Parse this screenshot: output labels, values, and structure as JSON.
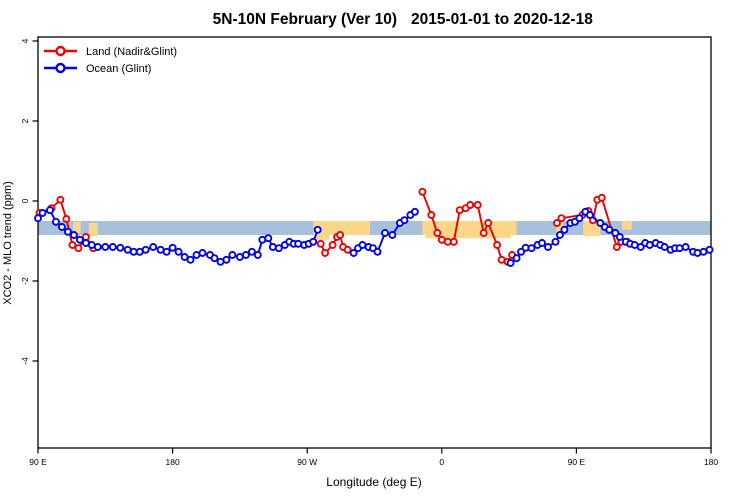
{
  "header": {
    "region_period": "5N-10N February (Ver 10)",
    "date_range": "2015-01-01 to 2020-12-18"
  },
  "legend": {
    "items": [
      {
        "label": "Land (Nadir&Glint)",
        "color": "#ee0000"
      },
      {
        "label": "Ocean (Glint)",
        "color": "#0000ee"
      }
    ]
  },
  "colors": {
    "band": "#a8c0dc",
    "highlight": "#fcd68a",
    "axis": "#000000"
  },
  "chart_data": {
    "type": "line",
    "title": "5N-10N February (Ver 10)   2015-01-01 to 2020-12-18",
    "xlabel": "Longitude (deg E)",
    "ylabel": "XCO2 - MLO trend (ppm)",
    "xlim": [
      90,
      540
    ],
    "ylim": [
      -6.2,
      4.1
    ],
    "grid": false,
    "legend_position": "top-left",
    "x_ticks": [
      {
        "lon": 90,
        "label": "90 E"
      },
      {
        "lon": 180,
        "label": "180"
      },
      {
        "lon": 270,
        "label": "90 W"
      },
      {
        "lon": 360,
        "label": "0"
      },
      {
        "lon": 450,
        "label": "90 E"
      },
      {
        "lon": 540,
        "label": "180"
      }
    ],
    "y_ticks": [
      {
        "value": 4,
        "label": "4"
      },
      {
        "value": 2,
        "label": "2"
      },
      {
        "value": 0,
        "label": "0"
      },
      {
        "value": -2,
        "label": "-2"
      },
      {
        "value": -4,
        "label": "-4"
      }
    ],
    "band": {
      "y_from": -0.5,
      "y_to": -0.85,
      "lon_from": 90,
      "lon_to": 540,
      "color": "#a8c0dc"
    },
    "highlight_regions": [
      {
        "lon_from": 113.5,
        "lon_to": 118.5,
        "v_from": -0.52,
        "v_to": -0.8
      },
      {
        "lon_from": 124,
        "lon_to": 130,
        "v_from": -0.55,
        "v_to": -0.88
      },
      {
        "lon_from": 274,
        "lon_to": 312,
        "v_from": -0.5,
        "v_to": -0.85
      },
      {
        "lon_from": 275,
        "lon_to": 285,
        "v_from": -0.85,
        "v_to": -0.97
      },
      {
        "lon_from": 347,
        "lon_to": 410,
        "v_from": -0.5,
        "v_to": -0.85
      },
      {
        "lon_from": 349,
        "lon_to": 406,
        "v_from": -0.85,
        "v_to": -0.93
      },
      {
        "lon_from": 436.5,
        "lon_to": 441,
        "v_from": -0.5,
        "v_to": -0.8
      },
      {
        "lon_from": 454.5,
        "lon_to": 466,
        "v_from": -0.5,
        "v_to": -0.88
      },
      {
        "lon_from": 480.5,
        "lon_to": 487,
        "v_from": -0.5,
        "v_to": -0.72
      }
    ],
    "series": [
      {
        "name": "Land (Nadir&Glint)",
        "color": "#ee0000",
        "segments": [
          [
            [
              91,
              -0.3
            ],
            [
              99,
              -0.18
            ],
            [
              105,
              0.03
            ],
            [
              109,
              -0.45
            ],
            [
              113,
              -1.1
            ],
            [
              117,
              -1.18
            ],
            [
              122,
              -0.9
            ],
            [
              127,
              -1.18
            ]
          ],
          [
            [
              279,
              -1.07
            ],
            [
              282,
              -1.3
            ],
            [
              287,
              -1.1
            ],
            [
              290,
              -0.9
            ],
            [
              292,
              -0.85
            ],
            [
              294,
              -1.15
            ],
            [
              297,
              -1.22
            ]
          ],
          [
            [
              347,
              0.23
            ],
            [
              353,
              -0.35
            ],
            [
              357,
              -0.8
            ],
            [
              360,
              -0.97
            ],
            [
              364,
              -1.02
            ],
            [
              368,
              -1.02
            ],
            [
              372,
              -0.23
            ],
            [
              376,
              -0.18
            ],
            [
              379,
              -0.1
            ],
            [
              384,
              -0.1
            ],
            [
              388,
              -0.8
            ],
            [
              391,
              -0.55
            ],
            [
              397,
              -1.1
            ],
            [
              400,
              -1.47
            ],
            [
              404,
              -1.52
            ],
            [
              407,
              -1.35
            ]
          ],
          [
            [
              437,
              -0.55
            ],
            [
              440,
              -0.43
            ],
            [
              454,
              -0.35
            ],
            [
              458,
              -0.25
            ],
            [
              461,
              -0.48
            ],
            [
              464,
              0.03
            ],
            [
              467,
              0.08
            ],
            [
              477,
              -1.15
            ],
            [
              480,
              -1.02
            ],
            [
              484,
              -1.02
            ]
          ]
        ]
      },
      {
        "name": "Ocean (Glint)",
        "color": "#0000ee",
        "segments": [
          [
            [
              90,
              -0.43
            ],
            [
              93,
              -0.3
            ],
            [
              98,
              -0.23
            ],
            [
              102,
              -0.52
            ],
            [
              106,
              -0.65
            ],
            [
              110,
              -0.77
            ],
            [
              114,
              -0.85
            ],
            [
              118,
              -0.97
            ],
            [
              122,
              -1.05
            ],
            [
              126,
              -1.1
            ],
            [
              130,
              -1.15
            ],
            [
              135,
              -1.15
            ],
            [
              140,
              -1.15
            ],
            [
              145,
              -1.17
            ],
            [
              150,
              -1.22
            ],
            [
              154,
              -1.27
            ],
            [
              158,
              -1.27
            ],
            [
              162,
              -1.22
            ],
            [
              167,
              -1.15
            ],
            [
              172,
              -1.22
            ],
            [
              176,
              -1.27
            ],
            [
              180,
              -1.17
            ],
            [
              184,
              -1.27
            ],
            [
              188,
              -1.4
            ],
            [
              192,
              -1.47
            ],
            [
              196,
              -1.35
            ],
            [
              200,
              -1.3
            ],
            [
              205,
              -1.35
            ],
            [
              208,
              -1.43
            ],
            [
              212,
              -1.52
            ],
            [
              216,
              -1.47
            ],
            [
              220,
              -1.35
            ],
            [
              225,
              -1.4
            ],
            [
              229,
              -1.35
            ],
            [
              233,
              -1.27
            ],
            [
              237,
              -1.35
            ],
            [
              240,
              -0.97
            ],
            [
              244,
              -0.93
            ],
            [
              247,
              -1.15
            ],
            [
              251,
              -1.18
            ],
            [
              255,
              -1.1
            ],
            [
              258,
              -1.02
            ],
            [
              261,
              -1.07
            ],
            [
              264,
              -1.07
            ],
            [
              268,
              -1.1
            ],
            [
              271,
              -1.07
            ],
            [
              274,
              -1.02
            ],
            [
              277,
              -0.72
            ]
          ],
          [
            [
              301,
              -1.3
            ],
            [
              304,
              -1.18
            ],
            [
              307,
              -1.1
            ],
            [
              311,
              -1.15
            ],
            [
              314,
              -1.18
            ],
            [
              317,
              -1.27
            ],
            [
              322,
              -0.8
            ],
            [
              327,
              -0.85
            ],
            [
              332,
              -0.55
            ],
            [
              335,
              -0.48
            ],
            [
              339,
              -0.35
            ],
            [
              342,
              -0.27
            ]
          ],
          [
            [
              406,
              -1.55
            ],
            [
              410,
              -1.43
            ],
            [
              413,
              -1.27
            ],
            [
              416,
              -1.17
            ],
            [
              420,
              -1.18
            ],
            [
              424,
              -1.1
            ],
            [
              427,
              -1.05
            ],
            [
              431,
              -1.15
            ],
            [
              436,
              -1.02
            ],
            [
              439,
              -0.85
            ],
            [
              442,
              -0.72
            ],
            [
              446,
              -0.55
            ],
            [
              449,
              -0.52
            ],
            [
              452,
              -0.43
            ],
            [
              456,
              -0.27
            ],
            [
              459,
              -0.35
            ],
            [
              466,
              -0.55
            ],
            [
              469,
              -0.65
            ],
            [
              472,
              -0.72
            ],
            [
              476,
              -0.8
            ],
            [
              479,
              -0.9
            ],
            [
              483,
              -1.02
            ],
            [
              486,
              -1.07
            ],
            [
              489,
              -1.1
            ],
            [
              493,
              -1.15
            ],
            [
              496,
              -1.05
            ],
            [
              499,
              -1.1
            ],
            [
              503,
              -1.05
            ],
            [
              506,
              -1.1
            ],
            [
              509,
              -1.15
            ],
            [
              513,
              -1.22
            ],
            [
              516,
              -1.18
            ],
            [
              519,
              -1.18
            ],
            [
              523,
              -1.15
            ],
            [
              528,
              -1.27
            ],
            [
              531,
              -1.3
            ],
            [
              535,
              -1.27
            ],
            [
              539,
              -1.22
            ]
          ]
        ]
      }
    ]
  }
}
